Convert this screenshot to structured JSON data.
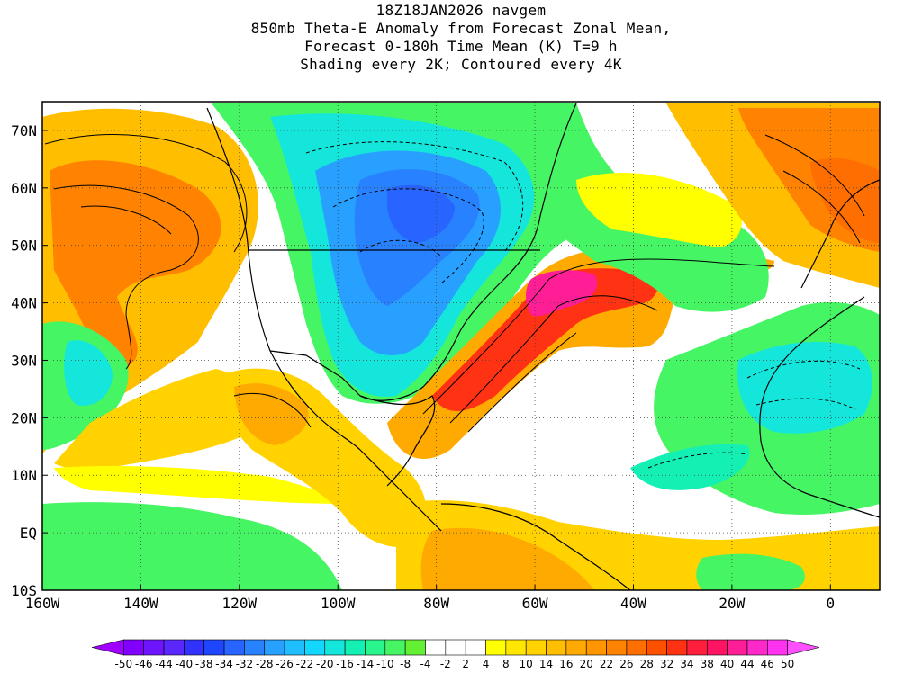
{
  "title": {
    "line1": "18Z18JAN2026 navgem",
    "line2": "850mb Theta-E Anomaly from Forecast Zonal Mean,",
    "line3": "Forecast 0-180h Time Mean (K) T=9 h",
    "line4": "Shading every 2K; Contoured every 4K"
  },
  "map": {
    "lon_range": [
      -160,
      10
    ],
    "lat_range": [
      -10,
      75
    ],
    "lat_labels": [
      "70N",
      "60N",
      "50N",
      "40N",
      "30N",
      "20N",
      "10N",
      "EQ",
      "10S"
    ],
    "lat_values": [
      70,
      60,
      50,
      40,
      30,
      20,
      10,
      0,
      -10
    ],
    "lon_labels": [
      "160W",
      "140W",
      "120W",
      "100W",
      "80W",
      "60W",
      "40W",
      "20W",
      "0"
    ],
    "lon_values": [
      -160,
      -140,
      -120,
      -100,
      -80,
      -60,
      -40,
      -20,
      0
    ],
    "grid": "dotted"
  },
  "colorbar": {
    "labels": [
      "-50",
      "-46",
      "-44",
      "-40",
      "-38",
      "-34",
      "-32",
      "-28",
      "-26",
      "-22",
      "-20",
      "-16",
      "-14",
      "-10",
      "-8",
      "-4",
      "-2",
      "2",
      "4",
      "8",
      "10",
      "14",
      "16",
      "20",
      "22",
      "26",
      "28",
      "32",
      "34",
      "38",
      "40",
      "44",
      "46",
      "50"
    ],
    "colors": [
      "#a000ff",
      "#8200ff",
      "#6e14ff",
      "#5a28ff",
      "#3232ff",
      "#1e46ff",
      "#2864ff",
      "#2882ff",
      "#28a0ff",
      "#1ebeff",
      "#14d7ff",
      "#14e6dc",
      "#14f0b4",
      "#28f58c",
      "#46f564",
      "#64f032",
      "#ffffff",
      "#ffffff",
      "#ffffff",
      "#ffff00",
      "#ffe600",
      "#ffd200",
      "#ffbe00",
      "#ffaa00",
      "#ff9600",
      "#ff8200",
      "#ff6e00",
      "#ff5000",
      "#ff3214",
      "#ff1e3c",
      "#ff1464",
      "#ff1e96",
      "#ff28c8",
      "#ff32f0",
      "#ff50ff"
    ]
  }
}
